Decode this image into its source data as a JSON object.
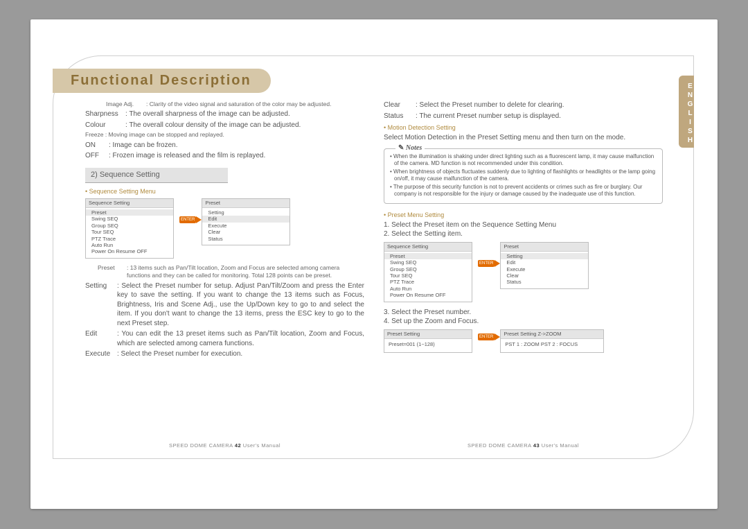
{
  "title": "Functional Description",
  "lang_tab": "ENGLISH",
  "footer": {
    "left": "SPEED DOME CAMERA  42   User's Manual",
    "right": "SPEED DOME CAMERA  43   User's Manual"
  },
  "left": {
    "image_adj": {
      "k": "Image Adj.",
      "v": ": Clarity of the video signal and saturation of the color may be adjusted."
    },
    "sharpness": {
      "k": "Sharpness",
      "v": ": The overall sharpness of the image can be adjusted."
    },
    "colour": {
      "k": "Colour",
      "v": ": The overall colour density of the image can be adjusted."
    },
    "freeze_note": "Freeze : Moving image can be stopped and replayed.",
    "on": {
      "k": "ON",
      "v": ": Image can be frozen."
    },
    "off": {
      "k": "OFF",
      "v": ": Frozen image is released and the film is replayed."
    },
    "section": "2) Sequence Setting",
    "bullet_menu": "• Sequence Setting Menu",
    "seq_menu": {
      "title": "Sequence Setting",
      "items": [
        "Preset",
        "Swing SEQ",
        "Group SEQ",
        "Tour SEQ",
        "PTZ Trace",
        "Auto Run",
        "Power On Resume OFF"
      ],
      "sel": 0
    },
    "preset_menu": {
      "title": "Preset",
      "items": [
        "Setting",
        "Edit",
        "Execute",
        "Clear",
        "Status"
      ],
      "sel": 1
    },
    "enter": "ENTER",
    "preset_def": {
      "k": "Preset",
      "v": ": 13 items such as Pan/Tilt location, Zoom and Focus are selected among camera functions and they can be called for monitoring. Total 128 points can be preset."
    },
    "setting_def": {
      "k": "Setting",
      "v": ": Select the Preset number for setup. Adjust Pan/Tilt/Zoom and press the Enter key to save the setting. If you want to change the 13 items such as Focus, Brightness, Iris and Scene Adj., use the Up/Down key to go to and select the item. If you don't want to change the 13 items, press the ESC key to go to the next Preset step."
    },
    "edit_def": {
      "k": "Edit",
      "v": ": You can edit the 13 preset items such as Pan/Tilt location, Zoom and Focus, which are selected among camera functions."
    },
    "execute_def": {
      "k": "Execute",
      "v": ": Select the Preset number for execution."
    }
  },
  "right": {
    "clear_def": {
      "k": "Clear",
      "v": ": Select the Preset number to delete for clearing."
    },
    "status_def": {
      "k": "Status",
      "v": ": The current Preset number setup is displayed."
    },
    "bullet_md": "• Motion Detection Setting",
    "md_line": "Select Motion Detection in the Preset Setting menu and then turn on the mode.",
    "notes_title": "Notes",
    "notes": [
      "When the illumination is shaking under direct lighting such as a fluorescent lamp, it may cause malfunction of the camera. MD function is not recommended under this condition.",
      "When brightness of objects fluctuates suddenly due to lighting of flashlights or headlights or the lamp going on/off, it may cause malfunction of the camera.",
      "The purpose of this security function is not to prevent accidents or crimes such as fire or burglary. Our company is not responsible for the injury or damage caused by the inadequate use of this function."
    ],
    "bullet_pm": "• Preset Menu Setting",
    "steps12": "1. Select the Preset item on the Sequence Setting Menu\n2. Select the Setting item.",
    "seq_menu": {
      "title": "Sequence Setting",
      "items": [
        "Preset",
        "Swing SEQ",
        "Group SEQ",
        "Tour SEQ",
        "PTZ Trace",
        "Auto Run",
        "Power On Resume OFF"
      ],
      "sel": 0
    },
    "preset_menu": {
      "title": "Preset",
      "items": [
        "Setting",
        "Edit",
        "Execute",
        "Clear",
        "Status"
      ],
      "sel": 0
    },
    "steps34": "3. Select the Preset number.\n4. Set up the Zoom and Focus.",
    "ps1": {
      "title": "Preset Setting",
      "body": "Preset=001 (1~128)"
    },
    "ps2": {
      "title": "Preset Setting      Z->ZOOM",
      "body": "PST 1 : ZOOM  PST 2 : FOCUS"
    }
  }
}
